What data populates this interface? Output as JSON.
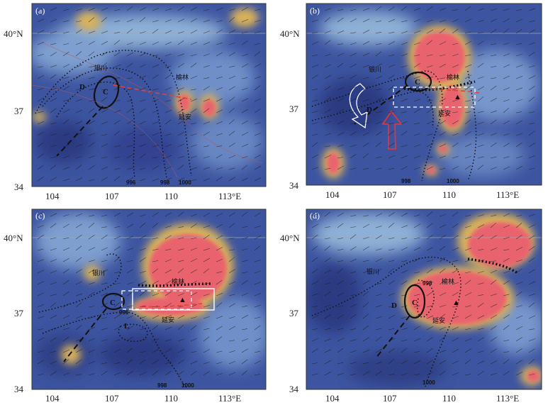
{
  "colors": {
    "sea_dark": "#2e3f86",
    "sea_mid": "#5b7fc0",
    "sea_light": "#a9c7dc",
    "cloud_yellow": "#d9b25a",
    "cloud_pink": "#e9646e",
    "cloud_hot": "#f3425c",
    "frame": "#333333"
  },
  "axes": {
    "lat_labels": [
      "40°N",
      "37",
      "34"
    ],
    "lon_labels_a": [
      "104",
      "107",
      "110",
      "113°E"
    ],
    "lon_labels_b": [
      "104",
      "107",
      "110",
      "113°E"
    ],
    "lon_labels_c": [
      "104",
      "107",
      "110",
      "113°E"
    ],
    "lon_labels_d": [
      "104",
      "107",
      "110",
      "113°E"
    ]
  },
  "panels": {
    "a": {
      "letter": "(a)",
      "cities": {
        "yinchuan": "银川",
        "yulin": "榆林",
        "yanan": "延安"
      },
      "symbols": {
        "D": "D",
        "C": "C"
      },
      "isobars": [
        "996",
        "998",
        "1000"
      ]
    },
    "b": {
      "letter": "(b)",
      "cities": {
        "yinchuan": "银川",
        "yulin": "榆林",
        "yanan": "延安"
      },
      "symbols": {
        "D": "D",
        "C": "C",
        "A": "▲"
      },
      "isobars": [
        "998",
        "1000"
      ]
    },
    "c": {
      "letter": "(c)",
      "cities": {
        "yinchuan": "银川",
        "yulin": "榆林",
        "yanan": "延安"
      },
      "symbols": {
        "C": "C",
        "L": "L",
        "A": "▲"
      },
      "isobars": [
        "996",
        "998",
        "1000"
      ]
    },
    "d": {
      "letter": "(d)",
      "cities": {
        "yinchuan": "银川",
        "yulin": "榆林",
        "yanan": "延安"
      },
      "symbols": {
        "D": "D",
        "C": "C",
        "A": "▲"
      },
      "isobars": [
        "998",
        "1000"
      ]
    }
  }
}
